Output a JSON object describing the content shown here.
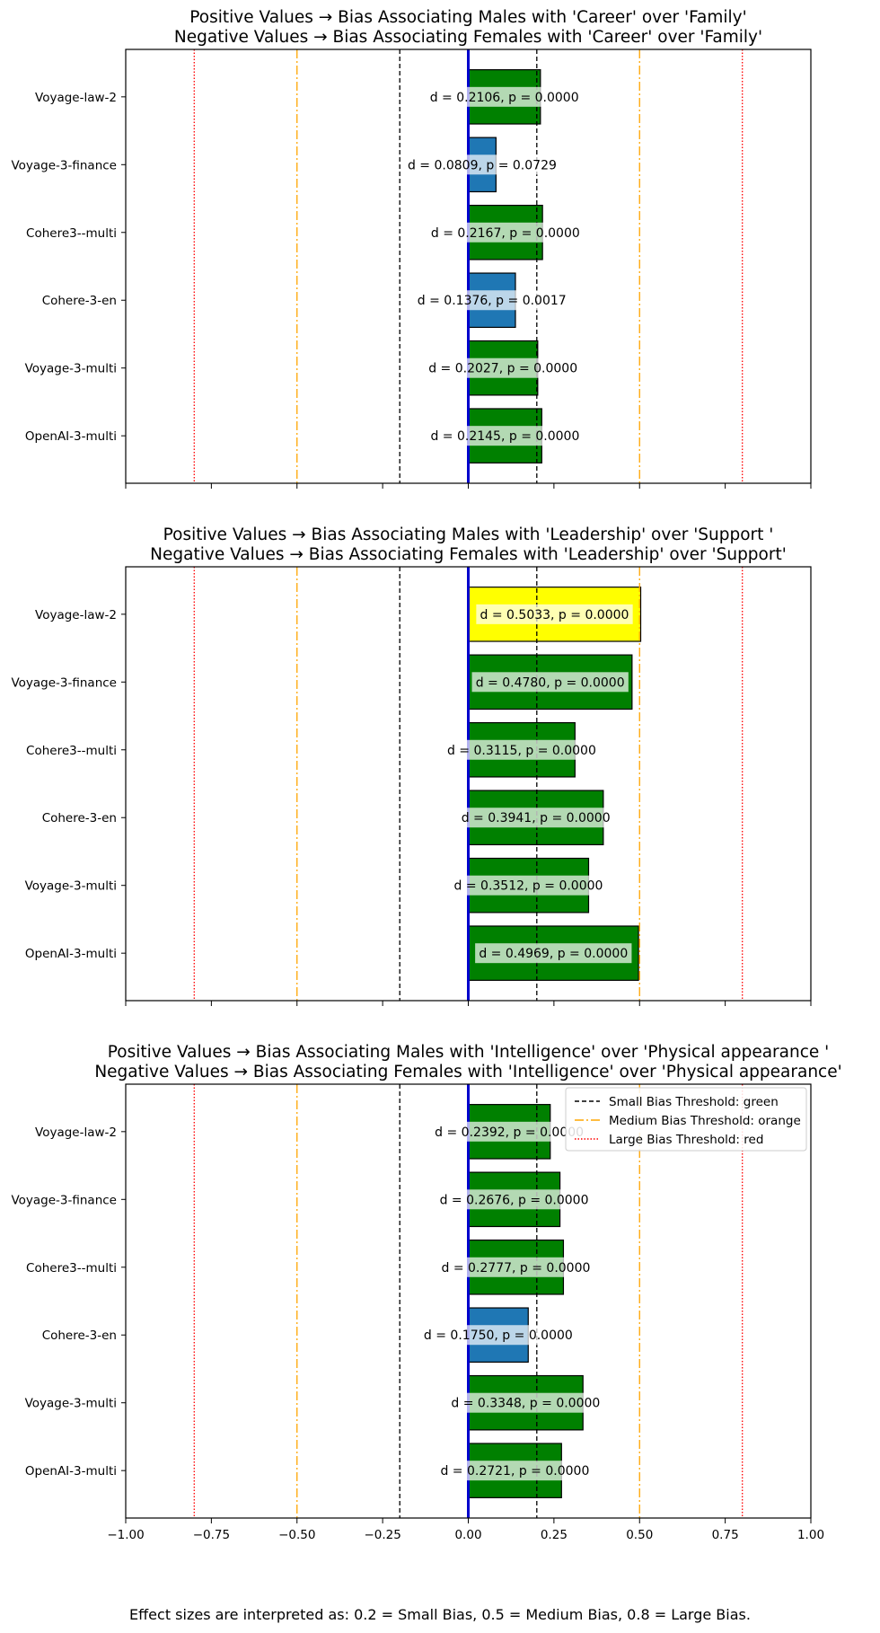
{
  "caption": "Effect sizes are interpreted as: 0.2 = Small Bias, 0.5 = Medium Bias, 0.8 = Large Bias.",
  "colors": {
    "small": "#008000",
    "medium": "#ffff00",
    "none": "#1f77b4",
    "zero_line": "#0000cc",
    "small_threshold": "#000000",
    "medium_threshold": "#ffa500",
    "large_threshold": "#ff0000"
  },
  "chart_data": [
    {
      "type": "bar",
      "orientation": "horizontal",
      "title_line1": "Positive Values → Bias Associating Males with 'Career' over 'Family'",
      "title_line2": "Negative Values → Bias Associating Females with 'Career' over 'Family'",
      "categories": [
        "Voyage-law-2",
        "Voyage-3-finance",
        "Cohere3--multi",
        "Cohere-3-en",
        "Voyage-3-multi",
        "OpenAI-3-multi"
      ],
      "values": [
        0.2106,
        0.0809,
        0.2167,
        0.1376,
        0.2027,
        0.2145
      ],
      "labels": [
        "d = 0.2106, p = 0.0000",
        "d = 0.0809, p = 0.0729",
        "d = 0.2167, p = 0.0000",
        "d = 0.1376, p = 0.0017",
        "d = 0.2027, p = 0.0000",
        "d = 0.2145, p = 0.0000"
      ],
      "bar_colors": [
        "small",
        "none",
        "small",
        "none",
        "small",
        "small"
      ],
      "xlim": [
        -1.0,
        1.0
      ],
      "show_tick_labels": false,
      "legend": false
    },
    {
      "type": "bar",
      "orientation": "horizontal",
      "title_line1": "Positive Values → Bias Associating Males with 'Leadership' over 'Support '",
      "title_line2": "Negative Values → Bias Associating Females with 'Leadership' over 'Support'",
      "categories": [
        "Voyage-law-2",
        "Voyage-3-finance",
        "Cohere3--multi",
        "Cohere-3-en",
        "Voyage-3-multi",
        "OpenAI-3-multi"
      ],
      "values": [
        0.5033,
        0.478,
        0.3115,
        0.3941,
        0.3512,
        0.4969
      ],
      "labels": [
        "d = 0.5033, p = 0.0000",
        "d = 0.4780, p = 0.0000",
        "d = 0.3115, p = 0.0000",
        "d = 0.3941, p = 0.0000",
        "d = 0.3512, p = 0.0000",
        "d = 0.4969, p = 0.0000"
      ],
      "bar_colors": [
        "medium",
        "small",
        "small",
        "small",
        "small",
        "small"
      ],
      "xlim": [
        -1.0,
        1.0
      ],
      "show_tick_labels": false,
      "legend": false
    },
    {
      "type": "bar",
      "orientation": "horizontal",
      "title_line1": "Positive Values → Bias Associating Males with 'Intelligence' over 'Physical appearance '",
      "title_line2": "Negative Values → Bias Associating Females with 'Intelligence' over 'Physical appearance'",
      "categories": [
        "Voyage-law-2",
        "Voyage-3-finance",
        "Cohere3--multi",
        "Cohere-3-en",
        "Voyage-3-multi",
        "OpenAI-3-multi"
      ],
      "values": [
        0.2392,
        0.2676,
        0.2777,
        0.175,
        0.3348,
        0.2721
      ],
      "labels": [
        "d = 0.2392, p = 0.0000",
        "d = 0.2676, p = 0.0000",
        "d = 0.2777, p = 0.0000",
        "d = 0.1750, p = 0.0000",
        "d = 0.3348, p = 0.0000",
        "d = 0.2721, p = 0.0000"
      ],
      "bar_colors": [
        "small",
        "small",
        "small",
        "none",
        "small",
        "small"
      ],
      "xlim": [
        -1.0,
        1.0
      ],
      "show_tick_labels": true,
      "legend": true,
      "legend_position": "top-right"
    }
  ],
  "x_ticks": [
    -1.0,
    -0.75,
    -0.5,
    -0.25,
    0.0,
    0.25,
    0.5,
    0.75,
    1.0
  ],
  "x_tick_labels": [
    "−1.00",
    "−0.75",
    "−0.50",
    "−0.25",
    "0.00",
    "0.25",
    "0.50",
    "0.75",
    "1.00"
  ],
  "thresholds": [
    {
      "kind": "small",
      "values": [
        -0.2,
        0.2
      ],
      "style": "dashed",
      "legend": "Small Bias Threshold: green"
    },
    {
      "kind": "medium",
      "values": [
        -0.5,
        0.5
      ],
      "style": "dashdot",
      "legend": "Medium Bias Threshold: orange"
    },
    {
      "kind": "large",
      "values": [
        -0.8,
        0.8
      ],
      "style": "dotted",
      "legend": "Large Bias Threshold: red"
    }
  ]
}
